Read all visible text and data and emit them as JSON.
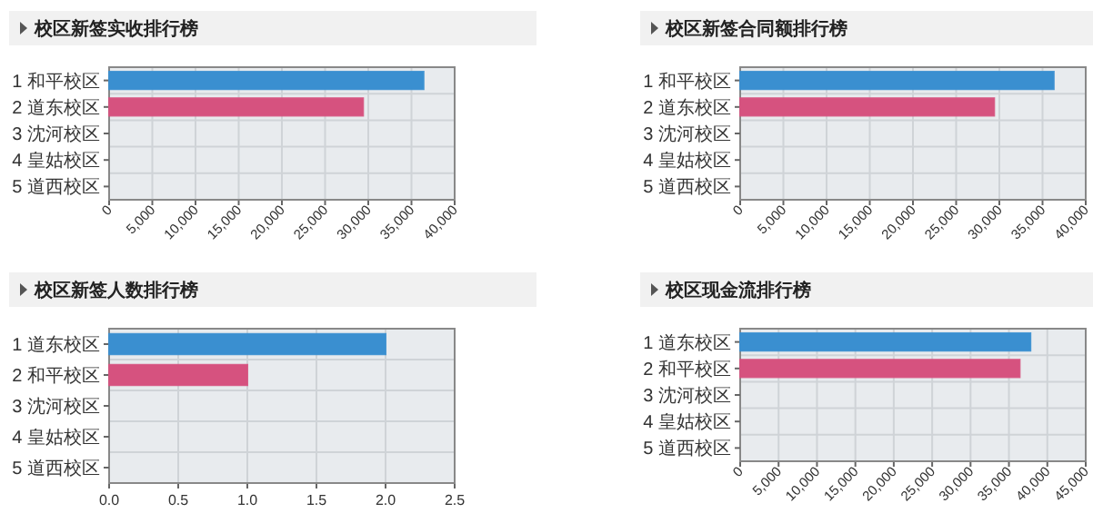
{
  "chart_data": [
    {
      "type": "bar",
      "orientation": "horizontal",
      "title": "校区新签实收排行榜",
      "categories": [
        "1 和平校区",
        "2 道东校区",
        "3 沈河校区",
        "4 皇姑校区",
        "5 道西校区"
      ],
      "values": [
        36400,
        29400,
        0,
        0,
        0
      ],
      "colors": [
        "#3a8fd0",
        "#d6527f",
        "#7fbf4f",
        "#e8c34a",
        "#d04a6a"
      ],
      "xlim": [
        0,
        40000
      ],
      "xticks": [
        0,
        {
          "value": 5000,
          "label": "5,000"
        },
        {
          "value": 10000,
          "label": "10,000"
        },
        {
          "value": 15000,
          "label": "15,000"
        },
        {
          "value": 20000,
          "label": "20,000"
        },
        {
          "value": 25000,
          "label": "25,000"
        },
        {
          "value": 30000,
          "label": "30,000"
        },
        {
          "value": 35000,
          "label": "35,000"
        },
        {
          "value": 40000,
          "label": "40,000"
        }
      ],
      "grid": true
    },
    {
      "type": "bar",
      "orientation": "horizontal",
      "title": "校区新签合同额排行榜",
      "categories": [
        "1 和平校区",
        "2 道东校区",
        "3 沈河校区",
        "4 皇姑校区",
        "5 道西校区"
      ],
      "values": [
        36300,
        29400,
        0,
        0,
        0
      ],
      "colors": [
        "#3a8fd0",
        "#d6527f",
        "#7fbf4f",
        "#e8c34a",
        "#d04a6a"
      ],
      "xlim": [
        0,
        40000
      ],
      "xticks": [
        0,
        {
          "value": 5000,
          "label": "5,000"
        },
        {
          "value": 10000,
          "label": "10,000"
        },
        {
          "value": 15000,
          "label": "15,000"
        },
        {
          "value": 20000,
          "label": "20,000"
        },
        {
          "value": 25000,
          "label": "25,000"
        },
        {
          "value": 30000,
          "label": "30,000"
        },
        {
          "value": 35000,
          "label": "35,000"
        },
        {
          "value": 40000,
          "label": "40,000"
        }
      ],
      "grid": true
    },
    {
      "type": "bar",
      "orientation": "horizontal",
      "title": "校区新签人数排行榜",
      "categories": [
        "1 道东校区",
        "2 和平校区",
        "3 沈河校区",
        "4 皇姑校区",
        "5 道西校区"
      ],
      "values": [
        2,
        1,
        0,
        0,
        0
      ],
      "colors": [
        "#3a8fd0",
        "#d6527f",
        "#7fbf4f",
        "#e8c34a",
        "#d04a6a"
      ],
      "xlim": [
        0,
        2.5
      ],
      "xticks": [
        {
          "value": 0,
          "label": "0.0"
        },
        0.5,
        {
          "value": 1,
          "label": "1.0"
        },
        1.5,
        {
          "value": 2,
          "label": "2.0"
        },
        2.5
      ],
      "grid": true
    },
    {
      "type": "bar",
      "orientation": "horizontal",
      "title": "校区现金流排行榜",
      "categories": [
        "1 道东校区",
        "2 和平校区",
        "3 沈河校区",
        "4 皇姑校区",
        "5 道西校区"
      ],
      "values": [
        37800,
        36400,
        0,
        0,
        0
      ],
      "colors": [
        "#3a8fd0",
        "#d6527f",
        "#7fbf4f",
        "#e8c34a",
        "#d04a6a"
      ],
      "xlim": [
        0,
        45000
      ],
      "xticks": [
        0,
        {
          "value": 5000,
          "label": "5,000"
        },
        {
          "value": 10000,
          "label": "10,000"
        },
        {
          "value": 15000,
          "label": "15,000"
        },
        {
          "value": 20000,
          "label": "20,000"
        },
        {
          "value": 25000,
          "label": "25,000"
        },
        {
          "value": 30000,
          "label": "30,000"
        },
        {
          "value": 35000,
          "label": "35,000"
        },
        {
          "value": 40000,
          "label": "40,000"
        },
        {
          "value": 45000,
          "label": "45,000"
        }
      ],
      "grid": true
    }
  ]
}
